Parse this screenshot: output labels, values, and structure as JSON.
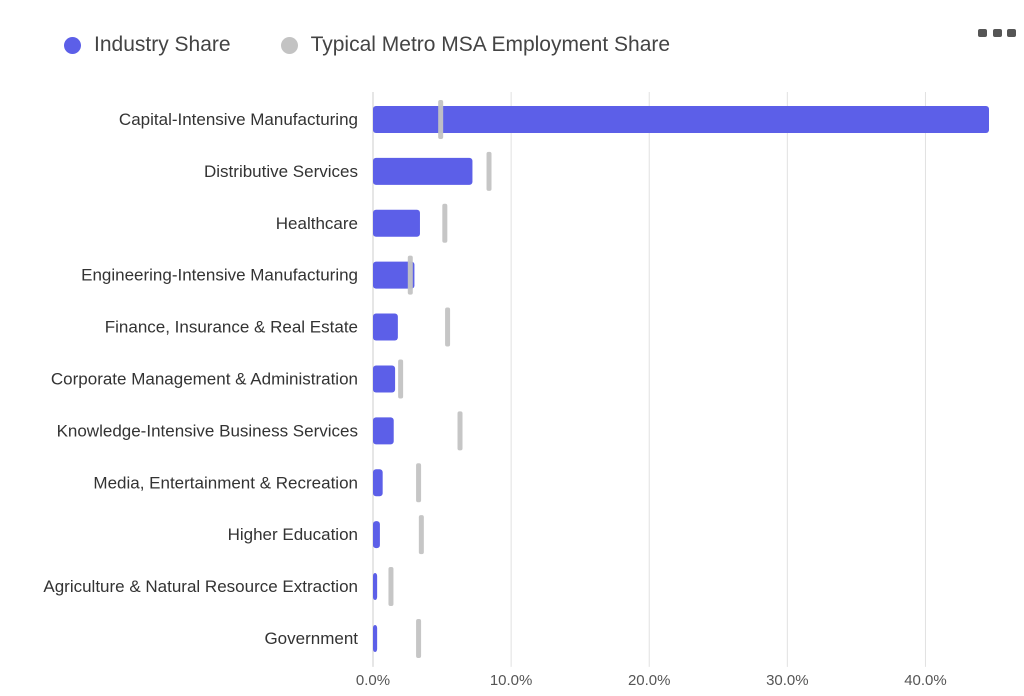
{
  "legend": {
    "items": [
      {
        "label": "Industry Share",
        "color": "#5c5fe8"
      },
      {
        "label": "Typical Metro MSA Employment Share",
        "color": "#c3c3c3"
      }
    ]
  },
  "menu": {
    "icon": "more-horizontal-icon"
  },
  "chart_data": {
    "type": "bar",
    "orientation": "horizontal",
    "categories": [
      "Capital-Intensive Manufacturing",
      "Distributive Services",
      "Healthcare",
      "Engineering-Intensive Manufacturing",
      "Finance, Insurance & Real Estate",
      "Corporate Management & Administration",
      "Knowledge-Intensive Business Services",
      "Media, Entertainment & Recreation",
      "Higher Education",
      "Agriculture & Natural Resource Extraction",
      "Government"
    ],
    "series": [
      {
        "name": "Industry Share",
        "type": "bar",
        "color": "#5c5fe8",
        "values": [
          44.6,
          7.2,
          3.4,
          3.0,
          1.8,
          1.6,
          1.5,
          0.7,
          0.5,
          0.3,
          0.3
        ]
      },
      {
        "name": "Typical Metro MSA Employment Share",
        "type": "marker",
        "color": "#c3c3c3",
        "values": [
          4.9,
          8.4,
          5.2,
          2.7,
          5.4,
          2.0,
          6.3,
          3.3,
          3.5,
          1.3,
          3.3
        ]
      }
    ],
    "xlim": [
      0,
      44.6
    ],
    "xticks": [
      0,
      10,
      20,
      30,
      40
    ],
    "xtick_labels": [
      "0.0%",
      "10.0%",
      "20.0%",
      "30.0%",
      "40.0%"
    ],
    "grid": true,
    "legend_position": "top-left"
  }
}
